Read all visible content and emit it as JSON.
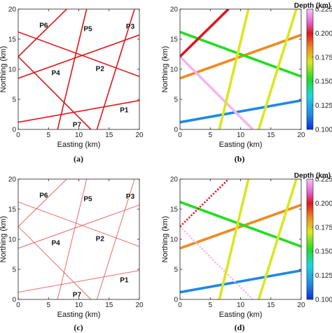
{
  "chart_data": [
    {
      "type": "line",
      "panel": "(a)",
      "xlabel": "Easting (km)",
      "ylabel": "Northing (km)",
      "xlim": [
        0,
        20
      ],
      "ylim": [
        0,
        20
      ],
      "xticks": [
        "0",
        "5",
        "10",
        "15",
        "20"
      ],
      "yticks": [
        "0",
        "5",
        "10",
        "15",
        "20"
      ],
      "line_color": "#e0161c",
      "style": "solid",
      "faults": [
        {
          "label": "P1",
          "label_at": [
            17.5,
            3.3
          ],
          "points": [
            [
              0,
              1.2
            ],
            [
              20,
              4.8
            ]
          ]
        },
        {
          "label": "P2",
          "label_at": [
            13.5,
            10.2
          ],
          "points": [
            [
              0,
              8.5
            ],
            [
              20,
              15.7
            ]
          ]
        },
        {
          "label": "P3",
          "label_at": [
            18.5,
            17.2
          ],
          "points": [
            [
              0,
              16.2
            ],
            [
              20,
              8.8
            ]
          ]
        },
        {
          "label": "P4",
          "label_at": [
            6.2,
            9.5
          ],
          "points": [
            [
              0,
              12.1
            ],
            [
              12,
              0
            ]
          ]
        },
        {
          "label": "P5",
          "label_at": [
            11.5,
            16.8
          ],
          "points": [
            [
              0,
              12.1
            ],
            [
              8,
              20
            ]
          ]
        },
        {
          "label": "P6",
          "label_at": [
            4.2,
            17.4
          ],
          "points": [
            [
              6.5,
              0
            ],
            [
              11.3,
              20
            ]
          ]
        },
        {
          "label": "P7",
          "label_at": [
            9.7,
            0.9
          ],
          "points": [
            [
              13,
              0
            ],
            [
              19.2,
              20
            ]
          ]
        }
      ]
    },
    {
      "type": "line",
      "panel": "(b)",
      "xlabel": "Easting (km)",
      "ylabel": "Northing (km)",
      "xlim": [
        0,
        20
      ],
      "ylim": [
        0,
        20
      ],
      "xticks": [
        "0",
        "5",
        "10",
        "15",
        "20"
      ],
      "yticks": [
        "0",
        "5",
        "10",
        "15",
        "20"
      ],
      "style": "thick",
      "colorbar": {
        "title": "Depth (km)",
        "min": 0.1,
        "max": 0.225,
        "ticks": [
          "0.225",
          "0.200",
          "0.175",
          "0.150",
          "0.125",
          "0.100"
        ]
      },
      "faults": [
        {
          "depth": 0.112,
          "color": "#1e88e5",
          "points": [
            [
              0,
              1.2
            ],
            [
              20,
              4.8
            ]
          ]
        },
        {
          "depth": 0.185,
          "color": "#f08a1e",
          "points": [
            [
              0,
              8.5
            ],
            [
              20,
              15.7
            ]
          ]
        },
        {
          "depth": 0.15,
          "color": "#22dd22",
          "points": [
            [
              0,
              16.2
            ],
            [
              20,
              8.8
            ]
          ]
        },
        {
          "depth": 0.222,
          "color": "#f4b6f0",
          "points": [
            [
              0,
              12.1
            ],
            [
              12,
              0
            ]
          ]
        },
        {
          "depth": 0.2,
          "color": "#dd1520",
          "points": [
            [
              0,
              12.1
            ],
            [
              8,
              20
            ]
          ]
        },
        {
          "depth": 0.165,
          "color": "#d8e81e",
          "points": [
            [
              6.5,
              0
            ],
            [
              11.3,
              20
            ]
          ]
        },
        {
          "depth": 0.165,
          "color": "#d8e81e",
          "points": [
            [
              13,
              0
            ],
            [
              19.2,
              20
            ]
          ]
        }
      ]
    },
    {
      "type": "line",
      "panel": "(c)",
      "xlabel": "Easting (km)",
      "ylabel": "Northing (km)",
      "xlim": [
        0,
        20
      ],
      "ylim": [
        0,
        20
      ],
      "xticks": [
        "0",
        "5",
        "10",
        "15",
        "20"
      ],
      "yticks": [
        "0",
        "5",
        "10",
        "15",
        "20"
      ],
      "line_color": "#e85a5e",
      "style": "thin",
      "faults": [
        {
          "label": "P1",
          "label_at": [
            17.5,
            3.3
          ],
          "points": [
            [
              0,
              1.2
            ],
            [
              20,
              4.8
            ]
          ]
        },
        {
          "label": "P2",
          "label_at": [
            13.5,
            10.2
          ],
          "points": [
            [
              0,
              8.5
            ],
            [
              20,
              15.7
            ]
          ]
        },
        {
          "label": "P3",
          "label_at": [
            18.5,
            17.2
          ],
          "points": [
            [
              0,
              16.2
            ],
            [
              20,
              8.8
            ]
          ]
        },
        {
          "label": "P4",
          "label_at": [
            6.2,
            9.5
          ],
          "points": [
            [
              0,
              12.1
            ],
            [
              12,
              0
            ]
          ]
        },
        {
          "label": "P5",
          "label_at": [
            11.5,
            16.8
          ],
          "points": [
            [
              0,
              12.1
            ],
            [
              8,
              20
            ]
          ]
        },
        {
          "label": "P6",
          "label_at": [
            4.2,
            17.4
          ],
          "points": [
            [
              6.5,
              0
            ],
            [
              11.3,
              20
            ]
          ]
        },
        {
          "label": "P7",
          "label_at": [
            9.7,
            0.9
          ],
          "points": [
            [
              13,
              0
            ],
            [
              19.2,
              20
            ]
          ]
        }
      ]
    },
    {
      "type": "line",
      "panel": "(d)",
      "xlabel": "Easting (km)",
      "ylabel": "Northing (km)",
      "xlim": [
        0,
        20
      ],
      "ylim": [
        0,
        20
      ],
      "xticks": [
        "0",
        "5",
        "10",
        "15",
        "20"
      ],
      "yticks": [
        "0",
        "5",
        "10",
        "15",
        "20"
      ],
      "style": "thick",
      "colorbar": {
        "title": "Depth (km)",
        "min": 0.1,
        "max": 0.225,
        "ticks": [
          "0.225",
          "0.200",
          "0.175",
          "0.150",
          "0.125",
          "0.100"
        ]
      },
      "faults": [
        {
          "depth": 0.112,
          "color": "#1e88e5",
          "points": [
            [
              0,
              1.2
            ],
            [
              20,
              4.8
            ]
          ]
        },
        {
          "depth": 0.185,
          "color": "#f08a1e",
          "points": [
            [
              0,
              8.5
            ],
            [
              20,
              15.7
            ]
          ]
        },
        {
          "depth": 0.15,
          "color": "#22dd22",
          "points": [
            [
              0,
              16.2
            ],
            [
              20,
              8.8
            ]
          ]
        },
        {
          "depth": 0.222,
          "color": "#f4b6f0",
          "dashed": true,
          "points": [
            [
              0,
              12.1
            ],
            [
              12,
              0
            ]
          ]
        },
        {
          "depth": 0.2,
          "color": "#dd1520",
          "dashed": true,
          "points": [
            [
              0,
              12.1
            ],
            [
              8,
              20
            ]
          ]
        },
        {
          "depth": 0.165,
          "color": "#d8e81e",
          "points": [
            [
              6.5,
              0
            ],
            [
              11.3,
              20
            ]
          ]
        },
        {
          "depth": 0.165,
          "color": "#d8e81e",
          "points": [
            [
              13,
              0
            ],
            [
              19.2,
              20
            ]
          ]
        }
      ]
    }
  ],
  "captions": [
    "(a)",
    "(b)",
    "(c)",
    "(d)"
  ]
}
